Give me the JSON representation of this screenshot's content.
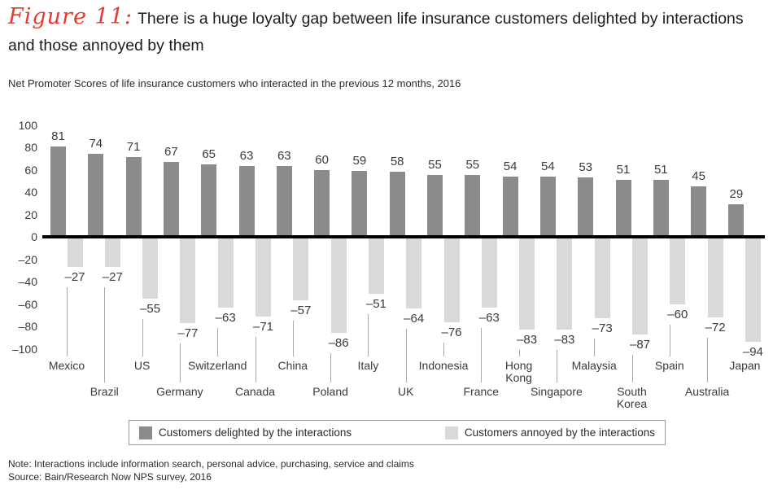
{
  "header": {
    "figure_label": "Figure 11:",
    "title": "There is a huge loyalty gap between life insurance customers delighted by interactions and those annoyed by them",
    "accent_color": "#e8392e"
  },
  "subtitle": "Net Promoter Scores of life insurance customers who interacted in the previous 12 months, 2016",
  "chart_data": {
    "type": "bar",
    "title": "Net Promoter Scores of life insurance customers who interacted in the previous 12 months, 2016",
    "categories": [
      "Mexico",
      "Brazil",
      "US",
      "Germany",
      "Switzerland",
      "Canada",
      "China",
      "Poland",
      "Italy",
      "UK",
      "Indonesia",
      "France",
      "Hong Kong",
      "Singapore",
      "Malaysia",
      "South Korea",
      "Spain",
      "Australia",
      "Japan"
    ],
    "category_display_lines": [
      [
        "Mexico"
      ],
      [
        "Brazil"
      ],
      [
        "US"
      ],
      [
        "Germany"
      ],
      [
        "Switzerland"
      ],
      [
        "Canada"
      ],
      [
        "China"
      ],
      [
        "Poland"
      ],
      [
        "Italy"
      ],
      [
        "UK"
      ],
      [
        "Indonesia"
      ],
      [
        "France"
      ],
      [
        "Hong",
        "Kong"
      ],
      [
        "Singapore"
      ],
      [
        "Malaysia"
      ],
      [
        "South",
        "Korea"
      ],
      [
        "Spain"
      ],
      [
        "Australia"
      ],
      [
        "Japan"
      ]
    ],
    "series": [
      {
        "name": "Customers delighted by the interactions",
        "color": "#8b8b8e",
        "values": [
          81,
          74,
          71,
          67,
          65,
          63,
          63,
          60,
          59,
          58,
          55,
          55,
          54,
          54,
          53,
          51,
          51,
          45,
          29
        ]
      },
      {
        "name": "Customers annoyed by the interactions",
        "color": "#d9d9db",
        "values": [
          -27,
          -27,
          -55,
          -77,
          -63,
          -71,
          -57,
          -86,
          -51,
          -64,
          -76,
          -63,
          -83,
          -83,
          -73,
          -87,
          -60,
          -72,
          -94
        ]
      }
    ],
    "ylim": [
      -100,
      100
    ],
    "yticks": [
      100,
      80,
      60,
      40,
      20,
      0,
      -20,
      -40,
      -60,
      -80,
      -100
    ],
    "grid": false,
    "legend_position": "bottom",
    "axis_line_color": "#000000",
    "xlabel": "",
    "ylabel": ""
  },
  "footer": {
    "note": "Note: Interactions include information search, personal advice, purchasing, service and claims",
    "source": "Source: Bain/Research Now NPS survey, 2016"
  }
}
